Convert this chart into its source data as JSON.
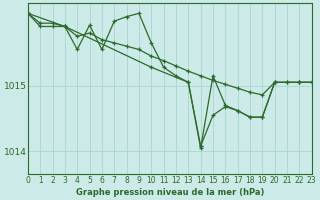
{
  "background_color": "#cceae7",
  "grid_color": "#aad4d0",
  "line_color": "#2d6a2d",
  "title": "Graphe pression niveau de la mer (hPa)",
  "xlim": [
    0,
    23
  ],
  "ylim": [
    1013.65,
    1016.25
  ],
  "yticks": [
    1014,
    1015
  ],
  "xticks": [
    0,
    1,
    2,
    3,
    4,
    5,
    6,
    7,
    8,
    9,
    10,
    11,
    12,
    13,
    14,
    15,
    16,
    17,
    18,
    19,
    20,
    21,
    22,
    23
  ],
  "s1_x": [
    0,
    1,
    2,
    3,
    4,
    5,
    6,
    7,
    8,
    9,
    10,
    11,
    12,
    13,
    14,
    15,
    16,
    17,
    18,
    19,
    20,
    21,
    22,
    23
  ],
  "s1_y": [
    1016.1,
    1015.95,
    1015.95,
    1015.9,
    1015.75,
    1015.8,
    1015.7,
    1015.65,
    1015.6,
    1015.55,
    1015.45,
    1015.38,
    1015.3,
    1015.22,
    1015.15,
    1015.08,
    1015.02,
    1014.96,
    1014.9,
    1014.86,
    1015.05,
    1015.05,
    1015.05,
    1015.05
  ],
  "s2_x": [
    0,
    1,
    2,
    3,
    4,
    5,
    6,
    7,
    8,
    9,
    10,
    11,
    12,
    13,
    14,
    15,
    16,
    17,
    18,
    19,
    20,
    21,
    22,
    23
  ],
  "s2_y": [
    1016.1,
    1015.9,
    1015.9,
    1015.9,
    1015.55,
    1015.92,
    1015.55,
    1015.98,
    1016.05,
    1016.1,
    1015.65,
    1015.28,
    1015.15,
    1015.05,
    1014.05,
    1015.15,
    1014.7,
    1014.62,
    1014.52,
    1014.52,
    1015.05,
    1015.05,
    1015.05,
    1015.05
  ],
  "s3_x": [
    0,
    3,
    10,
    13,
    14,
    14,
    15,
    16,
    17,
    18,
    19,
    20,
    22,
    23
  ],
  "s3_y": [
    1016.1,
    1015.9,
    1015.28,
    1015.05,
    1014.08,
    1014.08,
    1014.55,
    1014.68,
    1014.62,
    1014.52,
    1014.52,
    1015.05,
    1015.05,
    1015.05
  ]
}
